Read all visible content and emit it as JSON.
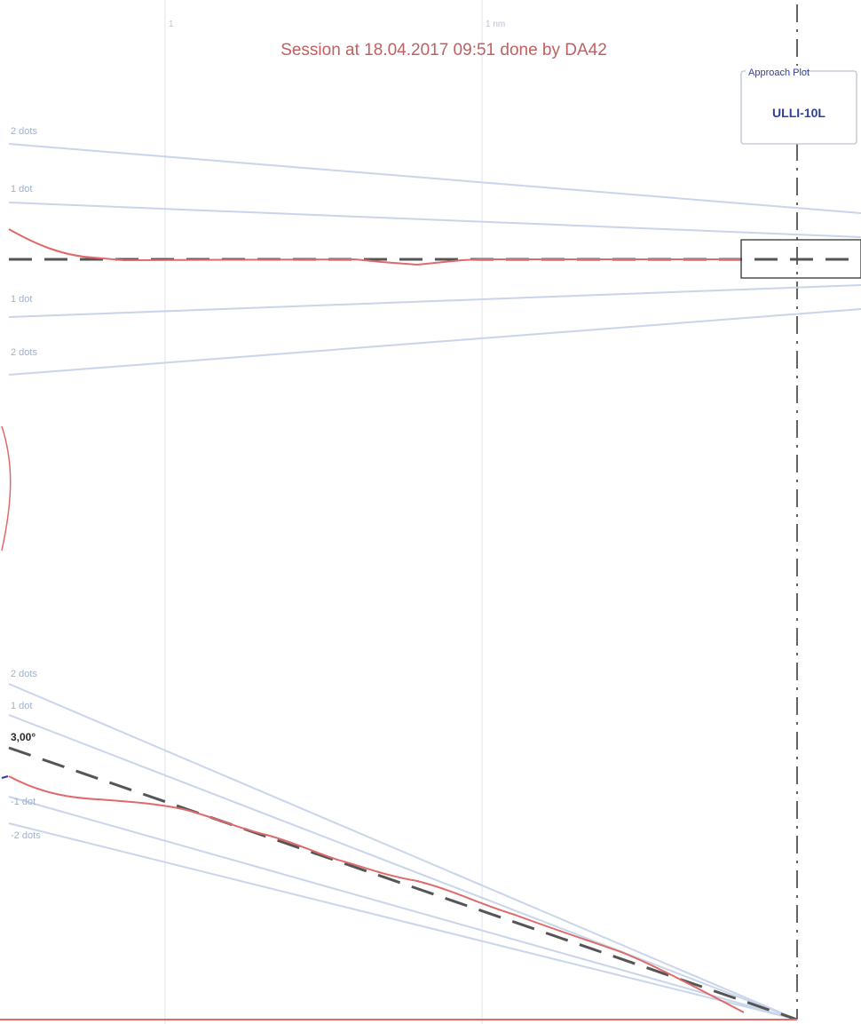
{
  "chart_data": [
    {
      "type": "line",
      "title": "Session at 18.04.2017 09:51 done by DA42",
      "subtitle": "",
      "panel": "lateral",
      "x_tick_labels": [
        "1",
        "1 nm"
      ],
      "band_labels": [
        "2 dots",
        "1 dot",
        "1 dot",
        "2 dots"
      ],
      "deviation_reference": {
        "label": "",
        "style": "dashed"
      },
      "series": [
        {
          "color": "#e06a6a",
          "x": [
            0,
            0.1,
            0.3,
            0.6,
            1.0,
            1.5,
            2.0,
            2.5,
            3.0,
            3.5,
            4.0,
            4.5,
            5.0
          ],
          "y": [
            0.45,
            0.25,
            0.05,
            0.0,
            0.0,
            0.0,
            -0.03,
            -0.08,
            -0.04,
            0.0,
            0.0,
            0.0,
            0.0
          ]
        }
      ],
      "legend": {
        "caption": "Approach Plot",
        "value": "ULLI-10L",
        "placement": "top-right"
      },
      "grid": true
    },
    {
      "type": "line",
      "panel": "vertical",
      "band_labels": [
        "2 dots",
        "1 dot",
        "3,00°",
        "-1 dot",
        "-2 dots"
      ],
      "glide_path_label": "3,00°",
      "series": [
        {
          "color": "#e06a6a",
          "x": [
            0,
            0.4,
            0.8,
            1.2,
            1.6,
            2.0,
            2.4,
            2.8,
            3.2,
            3.6,
            4.0,
            4.4,
            4.8,
            5.0
          ],
          "y": [
            -0.4,
            -0.55,
            -0.6,
            -0.5,
            -0.3,
            -0.1,
            -0.15,
            -0.05,
            -0.1,
            -0.15,
            -0.15,
            -0.12,
            -0.25,
            -0.2
          ]
        }
      ],
      "grid": true
    }
  ],
  "colors": {
    "trace": "#e06a6a",
    "band": "#c8d5ea",
    "reference": "#444444",
    "legend_text": "#2f3fa0",
    "title": "#c06060"
  }
}
